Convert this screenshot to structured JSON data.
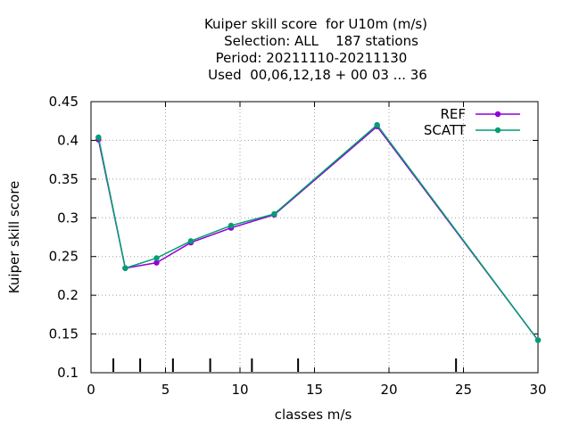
{
  "chart_data": {
    "type": "line",
    "title_lines": [
      "Kuiper skill score  for U10m (m/s)",
      "Selection: ALL    187 stations",
      "Period: 20211110-20211130",
      "Used  00,06,12,18 + 00 03 ... 36"
    ],
    "xlabel": "classes m/s",
    "ylabel": "Kuiper skill score",
    "xlim": [
      0,
      30
    ],
    "ylim": [
      0.1,
      0.45
    ],
    "x_ticks": [
      0,
      5,
      10,
      15,
      20,
      25,
      30
    ],
    "x_tick_labels": [
      "0",
      "5",
      "10",
      "15",
      "20",
      "25",
      "30"
    ],
    "y_ticks": [
      0.1,
      0.15,
      0.2,
      0.25,
      0.3,
      0.35,
      0.4,
      0.45
    ],
    "y_tick_labels": [
      "0.1",
      "0.15",
      "0.2",
      "0.25",
      "0.3",
      "0.35",
      "0.4",
      "0.45"
    ],
    "grid": true,
    "legend_position": "top-right",
    "class_boundaries": [
      1.5,
      3.3,
      5.5,
      8,
      10.8,
      13.9,
      24.5
    ],
    "series": [
      {
        "name": "REF",
        "color": "#9400d3",
        "x": [
          0.5,
          2.3,
          4.4,
          6.7,
          9.4,
          12.3,
          19.2,
          30
        ],
        "y": [
          0.401,
          0.235,
          0.242,
          0.268,
          0.287,
          0.304,
          0.418,
          0.142
        ]
      },
      {
        "name": "SCATT",
        "color": "#009e73",
        "x": [
          0.5,
          2.3,
          4.4,
          6.7,
          9.4,
          12.3,
          19.2,
          30
        ],
        "y": [
          0.404,
          0.235,
          0.248,
          0.27,
          0.29,
          0.305,
          0.42,
          0.142
        ]
      }
    ]
  }
}
